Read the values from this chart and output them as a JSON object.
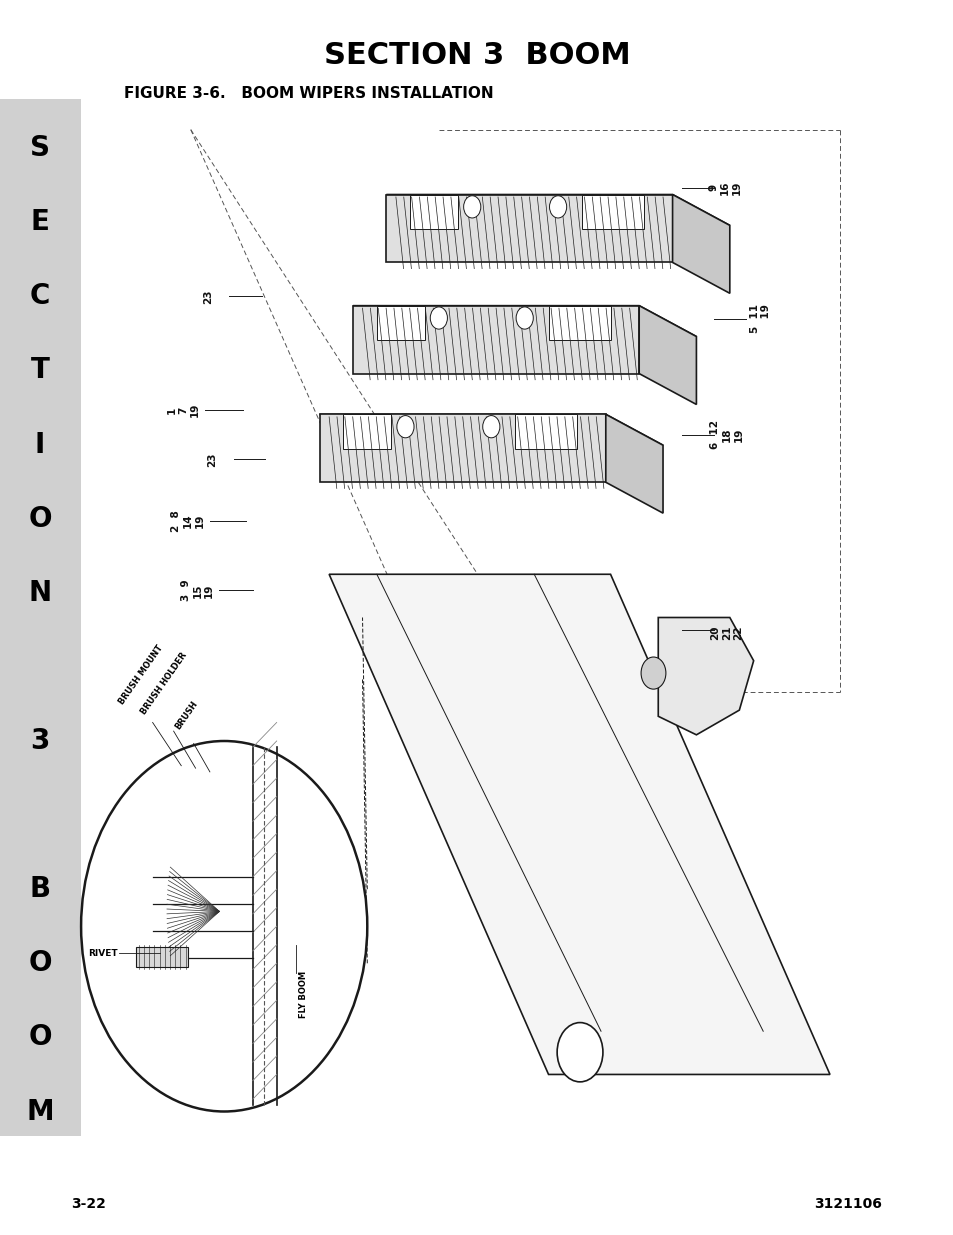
{
  "title": "SECTION 3  BOOM",
  "figure_label": "FIGURE 3-6.   BOOM WIPERS INSTALLATION",
  "page_number_left": "3-22",
  "page_number_right": "3121106",
  "sidebar_color": "#d0d0d0",
  "bg_color": "#ffffff",
  "title_fontsize": 22,
  "figure_label_fontsize": 11,
  "page_num_fontsize": 10,
  "sidebar_fontsize": 20
}
